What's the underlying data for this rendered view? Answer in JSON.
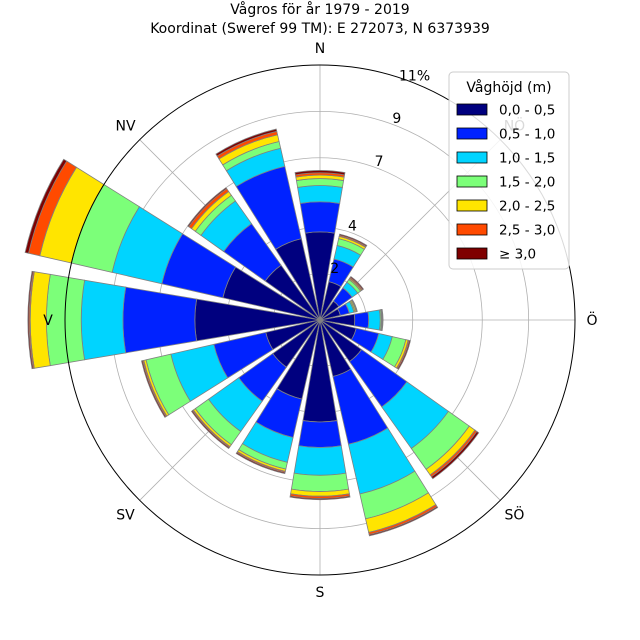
{
  "chart_data": {
    "type": "windrose",
    "title": "Vågros för år 1979 - 2019",
    "subtitle": "Koordinat (Sweref 99 TM): E 272073, N 6373939",
    "directions": [
      {
        "label": "N",
        "angle": 0
      },
      {
        "label": "NV",
        "angle": 315
      },
      {
        "label": "V",
        "angle": 270
      },
      {
        "label": "SV",
        "angle": 225
      },
      {
        "label": "S",
        "angle": 180
      },
      {
        "label": "SÖ",
        "angle": 135
      },
      {
        "label": "Ö",
        "angle": 90
      },
      {
        "label": "NÖ",
        "angle": 45
      }
    ],
    "radial_ticks": [
      {
        "value": 2,
        "label": "2"
      },
      {
        "value": 4,
        "label": "4"
      },
      {
        "value": 7,
        "label": "7"
      },
      {
        "value": 9,
        "label": "9"
      },
      {
        "value": 11,
        "label": "11%"
      }
    ],
    "r_max": 11,
    "legend_title": "Våghöjd (m)",
    "legend_position": "top-right",
    "grid": true,
    "series": [
      {
        "name": "0,0 - 0,5",
        "color": "#00007f"
      },
      {
        "name": "0,5 - 1,0",
        "color": "#0022ff"
      },
      {
        "name": "1,0 - 1,5",
        "color": "#00d4ff"
      },
      {
        "name": "1,5 - 2,0",
        "color": "#7cff79"
      },
      {
        "name": "2,0 - 2,5",
        "color": "#ffe500"
      },
      {
        "name": "2,5 - 3,0",
        "color": "#ff4a00"
      },
      {
        "name": "≥ 3,0",
        "color": "#7f0000"
      }
    ],
    "sectors": [
      {
        "angle": 0,
        "values": [
          3.8,
          5.1,
          5.8,
          6.1,
          6.25,
          6.35,
          6.45
        ]
      },
      {
        "angle": 22.5,
        "values": [
          1.7,
          2.7,
          3.3,
          3.6,
          3.7,
          3.75,
          3.8
        ]
      },
      {
        "angle": 45,
        "values": [
          1.0,
          1.7,
          2.0,
          2.15,
          2.2,
          2.25,
          2.3
        ]
      },
      {
        "angle": 67.5,
        "values": [
          0.9,
          1.3,
          1.5,
          1.55,
          1.6,
          1.62,
          1.65
        ]
      },
      {
        "angle": 90,
        "values": [
          1.5,
          2.1,
          2.6,
          2.65,
          2.68,
          2.7,
          2.72
        ]
      },
      {
        "angle": 112.5,
        "values": [
          1.6,
          2.6,
          3.2,
          3.8,
          3.9,
          3.95,
          4.0
        ]
      },
      {
        "angle": 135,
        "values": [
          2.2,
          4.6,
          6.8,
          7.9,
          8.2,
          8.3,
          8.4
        ]
      },
      {
        "angle": 157.5,
        "values": [
          2.5,
          5.5,
          7.7,
          8.8,
          9.4,
          9.5,
          9.55
        ]
      },
      {
        "angle": 180,
        "values": [
          4.4,
          5.5,
          6.7,
          7.4,
          7.6,
          7.7,
          7.75
        ]
      },
      {
        "angle": 202.5,
        "values": [
          3.5,
          5.2,
          6.3,
          6.6,
          6.7,
          6.75,
          6.8
        ]
      },
      {
        "angle": 225,
        "values": [
          2.5,
          4.3,
          5.9,
          6.6,
          6.7,
          6.75,
          6.8
        ]
      },
      {
        "angle": 247.5,
        "values": [
          2.4,
          4.7,
          6.6,
          7.7,
          7.8,
          7.85,
          7.9
        ]
      },
      {
        "angle": 270,
        "values": [
          5.4,
          8.5,
          10.3,
          11.8,
          12.5,
          12.55,
          12.6
        ]
      },
      {
        "angle": 292.5,
        "values": [
          4.3,
          7.0,
          9.2,
          11.0,
          12.4,
          12.9,
          13.05
        ]
      },
      {
        "angle": 315,
        "values": [
          2.9,
          5.1,
          6.3,
          6.6,
          6.8,
          6.95,
          7.0
        ]
      },
      {
        "angle": 337.5,
        "values": [
          3.6,
          6.8,
          7.6,
          7.9,
          8.2,
          8.35,
          8.45
        ]
      }
    ]
  }
}
